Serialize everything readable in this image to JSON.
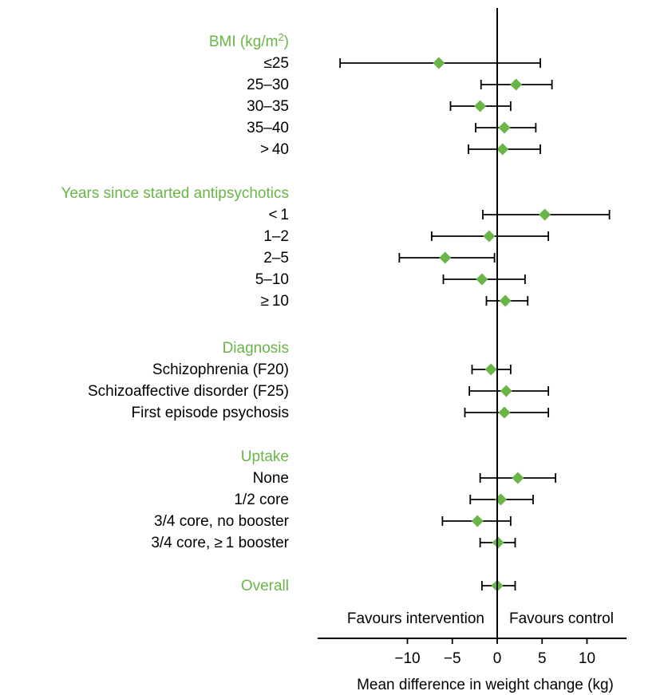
{
  "chart_data": {
    "type": "forest",
    "xlabel": "Mean difference in weight change (kg)",
    "xlim": [
      -18,
      14
    ],
    "xticks": [
      -10,
      -5,
      0,
      5,
      10
    ],
    "xtick_labels": [
      "−10",
      "−5",
      "0",
      "5",
      "10"
    ],
    "left_annotation": "Favours intervention",
    "right_annotation": "Favours control",
    "reference_line": 0,
    "colors": {
      "group": "#6ab547",
      "marker": "#6ab547",
      "line": "#000000"
    },
    "groups": [
      {
        "title": "BMI (kg/m",
        "title_sup": "2",
        "title_end": ")",
        "rows": [
          {
            "label": "≤25",
            "est": -6.5,
            "lo": -17.5,
            "hi": 4.8
          },
          {
            "label": "25–30",
            "est": 2.1,
            "lo": -1.8,
            "hi": 6.1
          },
          {
            "label": "30–35",
            "est": -1.9,
            "lo": -5.2,
            "hi": 1.5
          },
          {
            "label": "35–40",
            "est": 0.8,
            "lo": -2.4,
            "hi": 4.3
          },
          {
            "label": "> 40",
            "est": 0.6,
            "lo": -3.2,
            "hi": 4.8
          }
        ]
      },
      {
        "title": "Years since started antipsychotics",
        "rows": [
          {
            "label": "< 1",
            "est": 5.3,
            "lo": -1.6,
            "hi": 12.5
          },
          {
            "label": "1–2",
            "est": -0.9,
            "lo": -7.3,
            "hi": 5.7
          },
          {
            "label": "2–5",
            "est": -5.8,
            "lo": -10.9,
            "hi": -0.3
          },
          {
            "label": "5–10",
            "est": -1.7,
            "lo": -6.0,
            "hi": 3.1
          },
          {
            "label": "≥ 10",
            "est": 0.9,
            "lo": -1.2,
            "hi": 3.4
          }
        ]
      },
      {
        "title": "Diagnosis",
        "rows": [
          {
            "label": "Schizophrenia (F20)",
            "est": -0.7,
            "lo": -2.8,
            "hi": 1.5
          },
          {
            "label": "Schizoaffective disorder (F25)",
            "est": 1.0,
            "lo": -3.1,
            "hi": 5.7
          },
          {
            "label": "First episode psychosis",
            "est": 0.8,
            "lo": -3.6,
            "hi": 5.7
          }
        ]
      },
      {
        "title": "Uptake",
        "rows": [
          {
            "label": "None",
            "est": 2.3,
            "lo": -1.9,
            "hi": 6.5
          },
          {
            "label": "1/2 core",
            "est": 0.4,
            "lo": -3.0,
            "hi": 4.0
          },
          {
            "label": "3/4 core, no booster",
            "est": -2.2,
            "lo": -6.1,
            "hi": 1.5
          },
          {
            "label": "3/4 core, ≥ 1 booster",
            "est": 0.1,
            "lo": -1.9,
            "hi": 2.0
          }
        ]
      },
      {
        "title": "Overall",
        "rows": [
          {
            "label": "",
            "est": 0.0,
            "lo": -1.7,
            "hi": 2.0
          }
        ]
      }
    ]
  }
}
